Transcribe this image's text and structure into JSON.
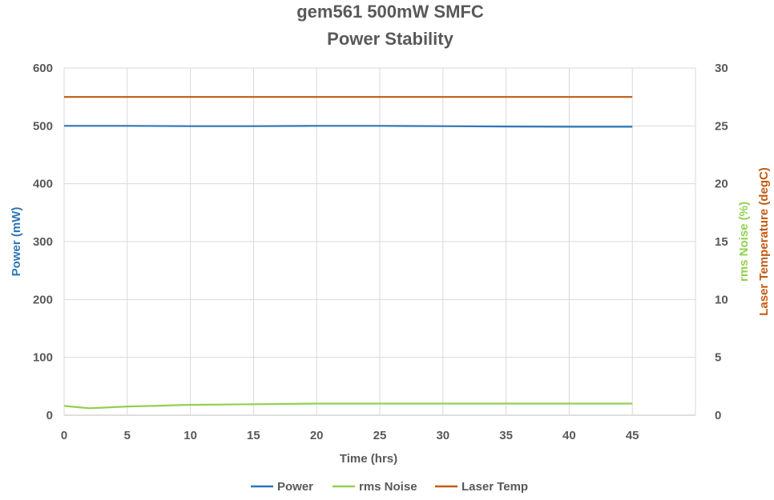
{
  "chart_data": {
    "type": "line",
    "title": "gem561 500mW SMFC",
    "subtitle": "Power Stability",
    "xlabel": "Time (hrs)",
    "ylabel": "Power (mW)",
    "y2labels": [
      "rms Noise (%)",
      "Laser Temperature (degC)"
    ],
    "xlim": [
      0,
      50
    ],
    "ylim": [
      0,
      600
    ],
    "y2lim": [
      0,
      30
    ],
    "xticks": [
      0,
      5,
      10,
      15,
      20,
      25,
      30,
      35,
      40,
      45
    ],
    "yticks": [
      0,
      100,
      200,
      300,
      400,
      500,
      600
    ],
    "y2ticks": [
      0,
      5,
      10,
      15,
      20,
      25,
      30
    ],
    "grid": true,
    "legend_position": "bottom",
    "series": [
      {
        "name": "Power",
        "axis": "left",
        "color": "#2e75b6",
        "x": [
          0,
          5,
          10,
          15,
          20,
          25,
          30,
          35,
          40,
          45
        ],
        "y": [
          500,
          500,
          499.5,
          499.5,
          500,
          500,
          499.5,
          499,
          498.5,
          498.5
        ]
      },
      {
        "name": "rms Noise",
        "axis": "right",
        "color": "#92d050",
        "x": [
          0,
          1,
          2,
          3,
          5,
          7,
          10,
          15,
          20,
          25,
          30,
          35,
          40,
          45
        ],
        "y": [
          0.8,
          0.7,
          0.6,
          0.65,
          0.75,
          0.8,
          0.9,
          0.95,
          1.0,
          1.0,
          1.0,
          1.0,
          1.0,
          1.0
        ]
      },
      {
        "name": "Laser Temp",
        "axis": "right",
        "color": "#c55a11",
        "x": [
          0,
          5,
          10,
          15,
          20,
          25,
          30,
          35,
          40,
          45
        ],
        "y": [
          27.5,
          27.5,
          27.5,
          27.5,
          27.5,
          27.5,
          27.5,
          27.5,
          27.5,
          27.5
        ]
      }
    ]
  }
}
